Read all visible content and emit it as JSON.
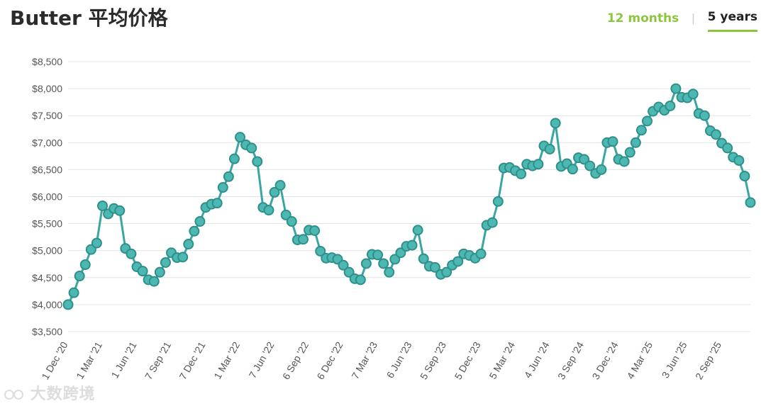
{
  "header": {
    "title": "Butter 平均价格",
    "tabs": [
      {
        "label": "12 months",
        "active": false
      },
      {
        "label": "5 years",
        "active": true
      }
    ]
  },
  "watermark": {
    "text": "大数跨境"
  },
  "colors": {
    "line": "#3aa6a3",
    "marker_fill": "#4db8b2",
    "marker_stroke": "#2f8f8b",
    "accent": "#8cc63f",
    "grid": "#e3e3e3",
    "axis_text": "#555555"
  },
  "chart_data": {
    "type": "line",
    "title": "Butter 平均价格",
    "xlabel": "",
    "ylabel": "",
    "ylim": [
      3500,
      8500
    ],
    "yticks": [
      3500,
      4000,
      4500,
      5000,
      5500,
      6000,
      6500,
      7000,
      7500,
      8000,
      8500
    ],
    "ytick_labels": [
      "$3,500",
      "$4,000",
      "$4,500",
      "$5,000",
      "$5,500",
      "$6,000",
      "$6,500",
      "$7,000",
      "$7,500",
      "$8,000",
      "$8,500"
    ],
    "xtick_labels": [
      {
        "index": 0,
        "label": "1 Dec '20"
      },
      {
        "index": 6,
        "label": "1 Mar '21"
      },
      {
        "index": 12,
        "label": "1 Jun '21"
      },
      {
        "index": 18,
        "label": "7 Sep '21"
      },
      {
        "index": 24,
        "label": "7 Dec '21"
      },
      {
        "index": 30,
        "label": "1 Mar '22"
      },
      {
        "index": 36,
        "label": "7 Jun '22"
      },
      {
        "index": 42,
        "label": "6 Sep '22"
      },
      {
        "index": 48,
        "label": "6 Dec '22"
      },
      {
        "index": 54,
        "label": "7 Mar '23"
      },
      {
        "index": 60,
        "label": "6 Jun '23"
      },
      {
        "index": 66,
        "label": "5 Sep '23"
      },
      {
        "index": 72,
        "label": "5 Dec '23"
      },
      {
        "index": 78,
        "label": "5 Mar '24"
      },
      {
        "index": 84,
        "label": "4 Jun '24"
      },
      {
        "index": 90,
        "label": "3 Sep '24"
      },
      {
        "index": 96,
        "label": "3 Dec '24"
      },
      {
        "index": 102,
        "label": "4 Mar '25"
      },
      {
        "index": 108,
        "label": "3 Jun '25"
      },
      {
        "index": 114,
        "label": "2 Sep '25"
      }
    ],
    "grid": true,
    "legend": "none",
    "series": [
      {
        "values": [
          4000,
          4220,
          4530,
          4740,
          5020,
          5140,
          5830,
          5680,
          5780,
          5740,
          5040,
          4940,
          4700,
          4620,
          4460,
          4430,
          4600,
          4780,
          4960,
          4870,
          4880,
          5120,
          5360,
          5540,
          5800,
          5860,
          5880,
          6170,
          6370,
          6700,
          7100,
          6960,
          6900,
          6650,
          5800,
          5750,
          6080,
          6210,
          5660,
          5540,
          5200,
          5210,
          5380,
          5370,
          4990,
          4860,
          4870,
          4840,
          4730,
          4600,
          4480,
          4460,
          4760,
          4930,
          4920,
          4760,
          4600,
          4840,
          4960,
          5080,
          5100,
          5380,
          4850,
          4710,
          4690,
          4560,
          4600,
          4730,
          4800,
          4940,
          4910,
          4860,
          4940,
          5470,
          5520,
          5910,
          6530,
          6540,
          6480,
          6420,
          6600,
          6570,
          6600,
          6940,
          6880,
          7360,
          6560,
          6610,
          6510,
          6720,
          6690,
          6570,
          6430,
          6500,
          7000,
          7020,
          6690,
          6650,
          6820,
          7000,
          7230,
          7400,
          7580,
          7660,
          7600,
          7680,
          8000,
          7840,
          7830,
          7900,
          7540,
          7500,
          7220,
          7150,
          6990,
          6900,
          6730,
          6670,
          6380,
          5890
        ]
      }
    ]
  }
}
